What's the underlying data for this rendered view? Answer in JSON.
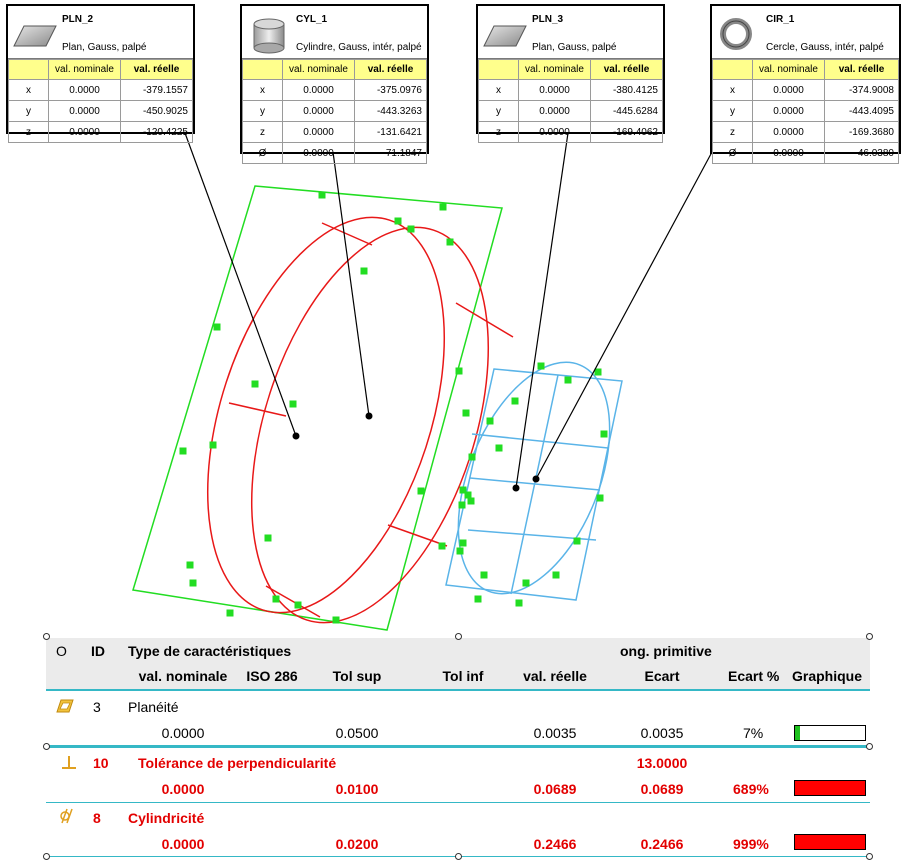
{
  "labels": [
    {
      "id": "PLN_2",
      "name": "PLN_2",
      "desc": "Plan, Gauss, palpé",
      "icon": "plane-icon",
      "header": {
        "key": "",
        "nominal": "val. nominale",
        "actual": "val. réelle"
      },
      "rows": [
        [
          "x",
          "0.0000",
          "-379.1557"
        ],
        [
          "y",
          "0.0000",
          "-450.9025"
        ],
        [
          "z",
          "0.0000",
          "-120.4225"
        ]
      ]
    },
    {
      "id": "CYL_1",
      "name": "CYL_1",
      "desc": "Cylindre, Gauss, intér, palpé",
      "icon": "cylinder-icon",
      "header": {
        "key": "",
        "nominal": "val. nominale",
        "actual": "val. réelle"
      },
      "rows": [
        [
          "x",
          "0.0000",
          "-375.0976"
        ],
        [
          "y",
          "0.0000",
          "-443.3263"
        ],
        [
          "z",
          "0.0000",
          "-131.6421"
        ],
        [
          "Ø",
          "0.0000",
          "71.1847"
        ]
      ]
    },
    {
      "id": "PLN_3",
      "name": "PLN_3",
      "desc": "Plan, Gauss, palpé",
      "icon": "plane-icon",
      "header": {
        "key": "",
        "nominal": "val. nominale",
        "actual": "val. réelle"
      },
      "rows": [
        [
          "x",
          "0.0000",
          "-380.4125"
        ],
        [
          "y",
          "0.0000",
          "-445.6284"
        ],
        [
          "z",
          "0.0000",
          "-169.4062"
        ]
      ]
    },
    {
      "id": "CIR_1",
      "name": "CIR_1",
      "desc": "Cercle, Gauss, intér, palpé",
      "icon": "circle-icon",
      "header": {
        "key": "",
        "nominal": "val. nominale",
        "actual": "val. réelle"
      },
      "rows": [
        [
          "x",
          "0.0000",
          "-374.9008"
        ],
        [
          "y",
          "0.0000",
          "-443.4095"
        ],
        [
          "z",
          "0.0000",
          "-169.3680"
        ],
        [
          "Ø",
          "0.0000",
          "46.0380"
        ]
      ]
    }
  ],
  "report": {
    "header1": {
      "o": "O",
      "id": "ID",
      "type": "Type de caractéristiques",
      "prim": "ong. primitive"
    },
    "header2": {
      "nominal": "val. nominale",
      "iso": "ISO 286",
      "tolsup": "Tol sup",
      "tolinf": "Tol inf",
      "actual": "val. réelle",
      "ecart": "Ecart",
      "ecartpct": "Ecart %",
      "graph": "Graphique"
    },
    "rows": [
      {
        "id": "3",
        "name": "Planéité",
        "prim": "",
        "nominal": "0.0000",
        "tolsup": "0.0500",
        "actual": "0.0035",
        "ecart": "0.0035",
        "pct": "7%",
        "fill": 0.07,
        "status": "ok",
        "icon": "flatness-icon",
        "color": "#1ec21e"
      },
      {
        "id": "10",
        "name": "Tolérance de perpendicularité",
        "prim": "13.0000",
        "nominal": "0.0000",
        "tolsup": "0.0100",
        "actual": "0.0689",
        "ecart": "0.0689",
        "pct": "689%",
        "fill": 1.0,
        "status": "fail",
        "icon": "perpendicularity-icon",
        "color": "#ff0000"
      },
      {
        "id": "8",
        "name": "Cylindricité",
        "prim": "",
        "nominal": "0.0000",
        "tolsup": "0.0200",
        "actual": "0.2466",
        "ecart": "0.2466",
        "pct": "999%",
        "fill": 1.0,
        "status": "fail",
        "icon": "cylindricity-icon",
        "color": "#ff0000"
      }
    ]
  },
  "colors": {
    "plane": "#22dd22",
    "cylinder": "#e81818",
    "circle": "#5ab4e8",
    "points": "#22dd22",
    "accent": "#35b8c6",
    "fail": "#e30000",
    "header_bg": "#ffff8c"
  }
}
